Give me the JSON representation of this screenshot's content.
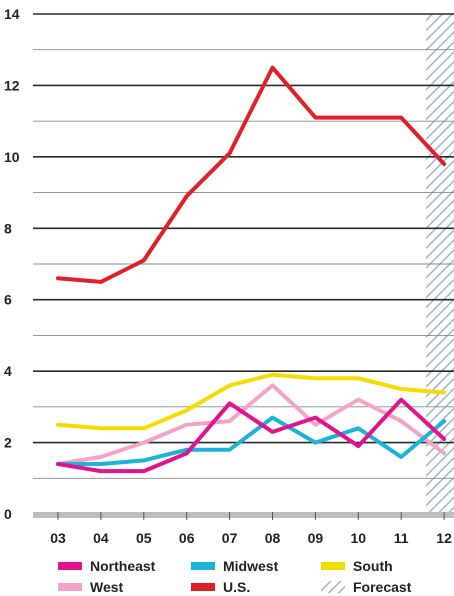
{
  "chart_data": {
    "type": "line",
    "title": "",
    "xlabel": "",
    "ylabel": "",
    "categories": [
      "03",
      "04",
      "05",
      "06",
      "07",
      "08",
      "09",
      "10",
      "11",
      "12"
    ],
    "ylim": [
      0,
      14
    ],
    "yticks": [
      0,
      2,
      4,
      6,
      8,
      10,
      12,
      14
    ],
    "grid": true,
    "forecast_category": "12",
    "series": [
      {
        "name": "U.S.",
        "color": "#e02028",
        "values": [
          6.6,
          6.5,
          7.1,
          8.9,
          10.1,
          12.5,
          11.1,
          11.1,
          11.1,
          9.8
        ]
      },
      {
        "name": "South",
        "color": "#f5dc00",
        "values": [
          2.5,
          2.4,
          2.4,
          2.9,
          3.6,
          3.9,
          3.8,
          3.8,
          3.5,
          3.4
        ]
      },
      {
        "name": "West",
        "color": "#f4a3c8",
        "values": [
          1.4,
          1.6,
          2.0,
          2.5,
          2.6,
          3.6,
          2.5,
          3.2,
          2.6,
          1.7
        ]
      },
      {
        "name": "Midwest",
        "color": "#1ab4d6",
        "values": [
          1.4,
          1.4,
          1.5,
          1.8,
          1.8,
          2.7,
          2.0,
          2.4,
          1.6,
          2.6
        ]
      },
      {
        "name": "Northeast",
        "color": "#e0148c",
        "values": [
          1.4,
          1.2,
          1.2,
          1.7,
          3.1,
          2.3,
          2.7,
          1.9,
          3.2,
          2.1
        ]
      }
    ],
    "legend": {
      "placement": "bottom",
      "items": [
        {
          "label": "Northeast",
          "color": "#e0148c",
          "kind": "line"
        },
        {
          "label": "Midwest",
          "color": "#1ab4d6",
          "kind": "line"
        },
        {
          "label": "South",
          "color": "#f5dc00",
          "kind": "line"
        },
        {
          "label": "West",
          "color": "#f4a3c8",
          "kind": "line"
        },
        {
          "label": "U.S.",
          "color": "#e02028",
          "kind": "line"
        },
        {
          "label": "Forecast",
          "color": "#9fb6c8",
          "kind": "hatch"
        }
      ]
    }
  }
}
